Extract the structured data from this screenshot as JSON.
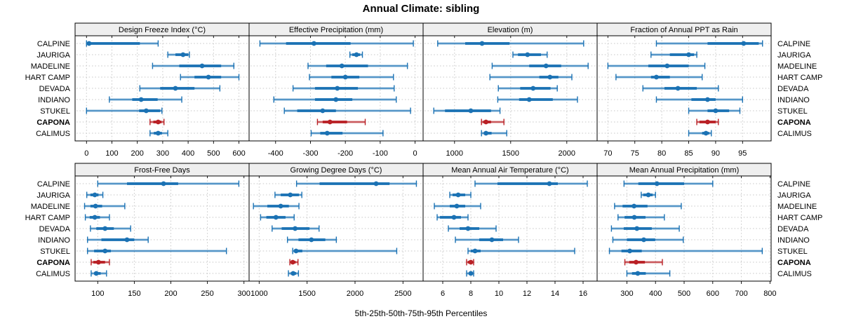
{
  "title": "Annual Climate: sibling",
  "caption": "5th-25th-50th-75th-95th Percentiles",
  "sites": [
    "CALPINE",
    "JAURIGA",
    "MADELINE",
    "HART CAMP",
    "DEVADA",
    "INDIANO",
    "STUKEL",
    "CAPONA",
    "CALIMUS"
  ],
  "highlight_site": "CAPONA",
  "colors": {
    "series": "#1b72b4",
    "highlight": "#b92025",
    "strip_bg": "#efefef",
    "panel_border": "#000000",
    "grid": "#c9c9c9",
    "text": "#000000"
  },
  "chart_data": {
    "type": "scatter",
    "subtype": "trellis-percentile-dotplot",
    "percentile_labels": [
      "5th",
      "25th",
      "50th",
      "75th",
      "95th"
    ],
    "legend_position": "none",
    "grid": true,
    "layout": {
      "rows": 2,
      "cols": 4
    },
    "categories": [
      "CALPINE",
      "JAURIGA",
      "MADELINE",
      "HART CAMP",
      "DEVADA",
      "INDIANO",
      "STUKEL",
      "CAPONA",
      "CALIMUS"
    ],
    "panels": [
      {
        "title": "Design Freeze Index (°C)",
        "grid_row": 0,
        "grid_col": 0,
        "xlim": [
          -45,
          640
        ],
        "ticks": [
          0,
          100,
          200,
          300,
          400,
          500,
          600
        ],
        "values": [
          [
            0,
            3,
            10,
            210,
            282
          ],
          [
            320,
            350,
            380,
            400,
            405
          ],
          [
            260,
            365,
            455,
            530,
            580
          ],
          [
            370,
            425,
            480,
            530,
            600
          ],
          [
            210,
            290,
            350,
            425,
            525
          ],
          [
            90,
            180,
            215,
            280,
            375
          ],
          [
            0,
            207,
            235,
            290,
            297
          ],
          [
            250,
            263,
            282,
            295,
            305
          ],
          [
            250,
            265,
            282,
            297,
            320
          ]
        ]
      },
      {
        "title": "Effective Precipitation (mm)",
        "grid_row": 0,
        "grid_col": 1,
        "xlim": [
          -476,
          23
        ],
        "ticks": [
          -400,
          -300,
          -200,
          -100,
          0
        ],
        "values": [
          [
            -445,
            -370,
            -290,
            -185,
            -5
          ],
          [
            -187,
            -180,
            -168,
            -158,
            -151
          ],
          [
            -307,
            -255,
            -210,
            -135,
            -22
          ],
          [
            -303,
            -240,
            -200,
            -160,
            -62
          ],
          [
            -350,
            -287,
            -223,
            -164,
            -60
          ],
          [
            -405,
            -287,
            -227,
            -180,
            -54
          ],
          [
            -375,
            -338,
            -265,
            -227,
            -13
          ],
          [
            -280,
            -265,
            -244,
            -195,
            -143
          ],
          [
            -298,
            -272,
            -252,
            -208,
            -92
          ]
        ]
      },
      {
        "title": "Elevation (m)",
        "grid_row": 0,
        "grid_col": 2,
        "xlim": [
          720,
          2270
        ],
        "ticks": [
          1000,
          1500,
          2000
        ],
        "values": [
          [
            850,
            1095,
            1245,
            1490,
            2150
          ],
          [
            1520,
            1565,
            1650,
            1770,
            1825
          ],
          [
            1335,
            1665,
            1815,
            1950,
            2190
          ],
          [
            1315,
            1755,
            1850,
            1925,
            2045
          ],
          [
            1390,
            1585,
            1700,
            1855,
            1915
          ],
          [
            1385,
            1575,
            1665,
            1875,
            2095
          ],
          [
            815,
            915,
            1145,
            1325,
            1405
          ],
          [
            1240,
            1255,
            1280,
            1325,
            1440
          ],
          [
            1240,
            1260,
            1280,
            1330,
            1465
          ]
        ]
      },
      {
        "title": "Fraction of Annual PPT as Rain",
        "grid_row": 0,
        "grid_col": 3,
        "xlim": [
          68,
          100.3
        ],
        "ticks": [
          70,
          75,
          80,
          85,
          90,
          95
        ],
        "values": [
          [
            79,
            88.5,
            95.2,
            98,
            98.7
          ],
          [
            78,
            81.5,
            85,
            86,
            86.5
          ],
          [
            70,
            77.5,
            81,
            85,
            88
          ],
          [
            71.5,
            78,
            79,
            81.5,
            87.5
          ],
          [
            76.5,
            80.5,
            83,
            86.5,
            90.5
          ],
          [
            79,
            85.5,
            88.5,
            90,
            95
          ],
          [
            85,
            88.5,
            90,
            92.5,
            94.5
          ],
          [
            86.5,
            87,
            88.5,
            90,
            90.5
          ],
          [
            85,
            87.5,
            88.2,
            88.8,
            89.2
          ]
        ]
      },
      {
        "title": "Frost-Free Days",
        "grid_row": 1,
        "grid_col": 0,
        "xlim": [
          69,
          307
        ],
        "ticks": [
          100,
          150,
          200,
          250,
          300
        ],
        "values": [
          [
            100,
            140,
            190,
            210,
            293
          ],
          [
            85,
            90,
            96,
            101,
            107
          ],
          [
            82,
            90,
            97,
            106,
            137
          ],
          [
            83,
            89,
            96,
            103,
            116
          ],
          [
            90,
            98,
            110,
            122,
            145
          ],
          [
            86,
            105,
            140,
            150,
            169
          ],
          [
            86,
            95,
            110,
            118,
            276
          ],
          [
            91,
            94,
            101,
            110,
            116
          ],
          [
            91,
            95,
            98,
            104,
            112
          ]
        ]
      },
      {
        "title": "Growing Degree Days (°C)",
        "grid_row": 1,
        "grid_col": 1,
        "xlim": [
          895,
          2710
        ],
        "ticks": [
          1000,
          1500,
          2000,
          2500
        ],
        "values": [
          [
            1390,
            1630,
            2220,
            2360,
            2640
          ],
          [
            1165,
            1225,
            1325,
            1415,
            1445
          ],
          [
            940,
            1085,
            1225,
            1310,
            1415
          ],
          [
            1015,
            1075,
            1175,
            1275,
            1365
          ],
          [
            1135,
            1235,
            1375,
            1525,
            1625
          ],
          [
            1295,
            1410,
            1545,
            1690,
            1805
          ],
          [
            1350,
            1365,
            1385,
            1450,
            2435
          ],
          [
            1320,
            1335,
            1350,
            1380,
            1405
          ],
          [
            1305,
            1330,
            1355,
            1385,
            1410
          ]
        ]
      },
      {
        "title": "Mean Annual Air Temperature (°C)",
        "grid_row": 1,
        "grid_col": 2,
        "xlim": [
          4.6,
          17
        ],
        "ticks": [
          6,
          8,
          10,
          12,
          14,
          16
        ],
        "values": [
          [
            8.3,
            9.9,
            13.6,
            14.2,
            16.3
          ],
          [
            6.5,
            6.7,
            7.1,
            7.6,
            8.0
          ],
          [
            5.4,
            6.5,
            7.0,
            7.6,
            8.7
          ],
          [
            5.6,
            5.8,
            6.8,
            7.3,
            7.8
          ],
          [
            6.4,
            7.2,
            7.8,
            8.6,
            9.8
          ],
          [
            6.9,
            8.6,
            9.5,
            10.3,
            11.4
          ],
          [
            7.8,
            8.0,
            8.3,
            8.7,
            15.4
          ],
          [
            7.7,
            7.8,
            8.0,
            8.1,
            8.2
          ],
          [
            7.7,
            7.9,
            8.0,
            8.1,
            8.2
          ]
        ]
      },
      {
        "title": "Mean Annual Precipitation (mm)",
        "grid_row": 1,
        "grid_col": 3,
        "xlim": [
          196,
          804
        ],
        "ticks": [
          300,
          400,
          500,
          600,
          700,
          800
        ],
        "values": [
          [
            290,
            340,
            405,
            500,
            600
          ],
          [
            350,
            357,
            375,
            390,
            400
          ],
          [
            257,
            285,
            325,
            372,
            490
          ],
          [
            269,
            292,
            326,
            365,
            431
          ],
          [
            246,
            289,
            335,
            387,
            483
          ],
          [
            251,
            300,
            359,
            399,
            497
          ],
          [
            239,
            281,
            310,
            352,
            773
          ],
          [
            293,
            308,
            332,
            363,
            424
          ],
          [
            300,
            318,
            338,
            366,
            450
          ]
        ]
      }
    ]
  }
}
